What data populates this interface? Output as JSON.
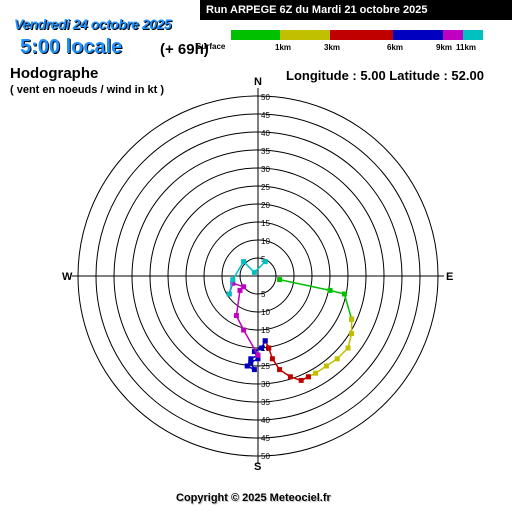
{
  "header": {
    "date": "Vendredi 24 octobre 2025",
    "time": "5:00 locale",
    "offset": "(+ 69h)",
    "run": "Run ARPEGE 6Z du Mardi 21 octobre 2025"
  },
  "title": "Hodographe",
  "subtitle": "( vent en noeuds / wind in kt )",
  "location": "Longitude : 5.00  Latitude : 52.00",
  "copyright": "Copyright © 2025 Meteociel.fr",
  "legend": [
    {
      "label": "Surface",
      "color": "#00c000"
    },
    {
      "label": "1km",
      "color": "#c0c000"
    },
    {
      "label": "3km",
      "color": "#c00000"
    },
    {
      "label": "6km",
      "color": "#0000c0"
    },
    {
      "label": "9km",
      "color": "#c000c0"
    },
    {
      "label": "11km",
      "color": "#00c0c0"
    }
  ],
  "chart_data": {
    "type": "scatter",
    "title": "Hodographe",
    "unit": "kt",
    "ring_labels": [
      "5",
      "10",
      "15",
      "20",
      "25",
      "30",
      "35",
      "40",
      "45",
      "50"
    ],
    "rmax": 50,
    "compass": {
      "N": "N",
      "S": "S",
      "E": "E",
      "W": "W"
    },
    "series": [
      {
        "name": "Surface",
        "color": "#00c000",
        "points": [
          [
            6,
            -1
          ],
          [
            20,
            -4
          ],
          [
            24,
            -5
          ],
          [
            26,
            -12
          ]
        ]
      },
      {
        "name": "1km",
        "color": "#c0c000",
        "points": [
          [
            26,
            -12
          ],
          [
            26,
            -16
          ],
          [
            25,
            -20
          ],
          [
            22,
            -23
          ],
          [
            19,
            -25
          ],
          [
            16,
            -27
          ],
          [
            14,
            -28
          ]
        ]
      },
      {
        "name": "3km",
        "color": "#c00000",
        "points": [
          [
            14,
            -28
          ],
          [
            12,
            -29
          ],
          [
            9,
            -28
          ],
          [
            6,
            -26
          ],
          [
            4,
            -23
          ],
          [
            3,
            -20
          ],
          [
            2,
            -18
          ]
        ]
      },
      {
        "name": "6km",
        "color": "#0000c0",
        "points": [
          [
            2,
            -18
          ],
          [
            1,
            -20
          ],
          [
            -1,
            -21
          ],
          [
            0,
            -23
          ],
          [
            -2,
            -24
          ],
          [
            -1,
            -26
          ],
          [
            -3,
            -25
          ],
          [
            -2,
            -23
          ],
          [
            0,
            -22
          ]
        ]
      },
      {
        "name": "9km",
        "color": "#c000c0",
        "points": [
          [
            0,
            -22
          ],
          [
            -4,
            -15
          ],
          [
            -6,
            -11
          ],
          [
            -5,
            -4
          ],
          [
            -4,
            -3
          ],
          [
            -7,
            -2
          ],
          [
            -8,
            -5
          ]
        ]
      },
      {
        "name": "11km",
        "color": "#00c0c0",
        "points": [
          [
            -8,
            -5
          ],
          [
            -7,
            -1
          ],
          [
            -4,
            4
          ],
          [
            -1,
            1
          ],
          [
            2,
            4
          ]
        ]
      }
    ]
  }
}
